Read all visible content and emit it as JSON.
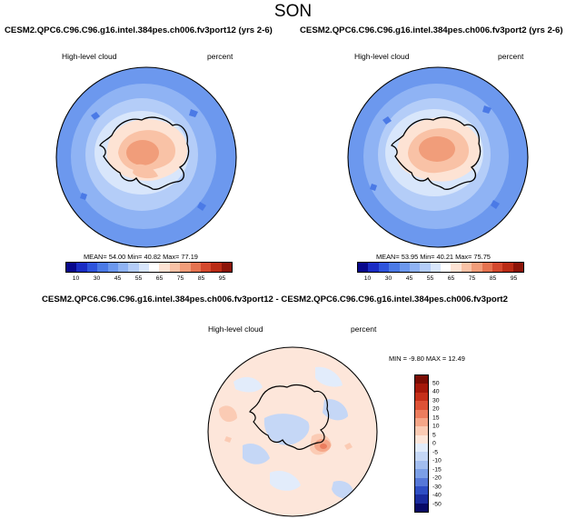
{
  "page": {
    "title": "SON"
  },
  "panels": [
    {
      "title": "CESM2.QPC6.C96.C96.g16.intel.384pes.ch006.fv3port12 (yrs 2-6)",
      "left_label": "High-level cloud",
      "right_label": "percent",
      "stats": "MEAN=  54.00  Min=  40.82  Max=  77.19",
      "colorbar_ticks": [
        "10",
        "30",
        "45",
        "55",
        "65",
        "75",
        "85",
        "95"
      ]
    },
    {
      "title": "CESM2.QPC6.C96.C96.g16.intel.384pes.ch006.fv3port2 (yrs 2-6)",
      "left_label": "High-level cloud",
      "right_label": "percent",
      "stats": "MEAN=  53.95  Min=  40.21  Max=  75.75",
      "colorbar_ticks": [
        "10",
        "30",
        "45",
        "55",
        "65",
        "75",
        "85",
        "95"
      ]
    }
  ],
  "diff_panel": {
    "title": "CESM2.QPC6.C96.C96.g16.intel.384pes.ch006.fv3port12 - CESM2.QPC6.C96.C96.g16.intel.384pes.ch006.fv3port2",
    "left_label": "High-level cloud",
    "right_label": "percent",
    "stats": "MIN =  -9.80  MAX =  12.49",
    "colorbar_ticks": [
      "50",
      "40",
      "30",
      "20",
      "15",
      "10",
      "5",
      "0",
      "-5",
      "-10",
      "-15",
      "-20",
      "-30",
      "-40",
      "-50"
    ]
  },
  "colors": {
    "field_scale": [
      "#08088c",
      "#1a2cc4",
      "#2e54dc",
      "#4b7ae6",
      "#6c98ee",
      "#8fb3f4",
      "#b4cdf8",
      "#d8e6fb",
      "#ffffff",
      "#fde3d4",
      "#f9c2a6",
      "#f19d7a",
      "#e57350",
      "#d4492e",
      "#b92b15",
      "#8c1408"
    ],
    "diff_scale": [
      "#7a0c04",
      "#a5180a",
      "#c5301a",
      "#dd5236",
      "#ec7d5e",
      "#f5a688",
      "#fbcbb4",
      "#fde6da",
      "#e2ecfb",
      "#c5d7f6",
      "#a2bdef",
      "#7c9fe6",
      "#5678d8",
      "#2f4fc4",
      "#1a2c9e",
      "#080a66"
    ],
    "land_outline": "#000000"
  }
}
